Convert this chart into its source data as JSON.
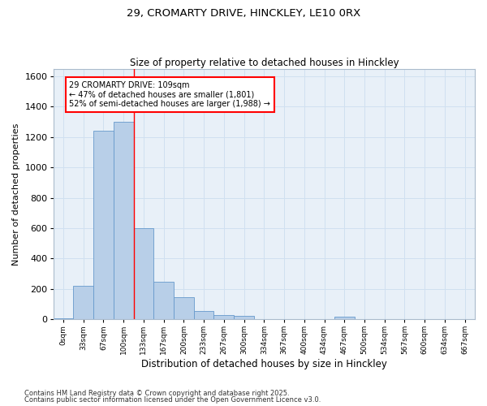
{
  "title1": "29, CROMARTY DRIVE, HINCKLEY, LE10 0RX",
  "title2": "Size of property relative to detached houses in Hinckley",
  "xlabel": "Distribution of detached houses by size in Hinckley",
  "ylabel": "Number of detached properties",
  "footnote1": "Contains HM Land Registry data © Crown copyright and database right 2025.",
  "footnote2": "Contains public sector information licensed under the Open Government Licence v3.0.",
  "annotation_title": "29 CROMARTY DRIVE: 109sqm",
  "annotation_line2": "← 47% of detached houses are smaller (1,801)",
  "annotation_line3": "52% of semi-detached houses are larger (1,988) →",
  "bar_labels": [
    "0sqm",
    "33sqm",
    "67sqm",
    "100sqm",
    "133sqm",
    "167sqm",
    "200sqm",
    "233sqm",
    "267sqm",
    "300sqm",
    "334sqm",
    "367sqm",
    "400sqm",
    "434sqm",
    "467sqm",
    "500sqm",
    "534sqm",
    "567sqm",
    "600sqm",
    "634sqm",
    "667sqm"
  ],
  "bar_values": [
    5,
    220,
    1240,
    1300,
    600,
    245,
    145,
    55,
    30,
    20,
    0,
    0,
    0,
    0,
    15,
    0,
    0,
    0,
    0,
    0,
    0
  ],
  "bar_color": "#b8cfe8",
  "bar_edge_color": "#6699cc",
  "grid_color": "#d0e0f0",
  "background_color": "#e8f0f8",
  "red_line_x": 3.5,
  "ylim": [
    0,
    1650
  ],
  "yticks": [
    0,
    200,
    400,
    600,
    800,
    1000,
    1200,
    1400,
    1600
  ]
}
